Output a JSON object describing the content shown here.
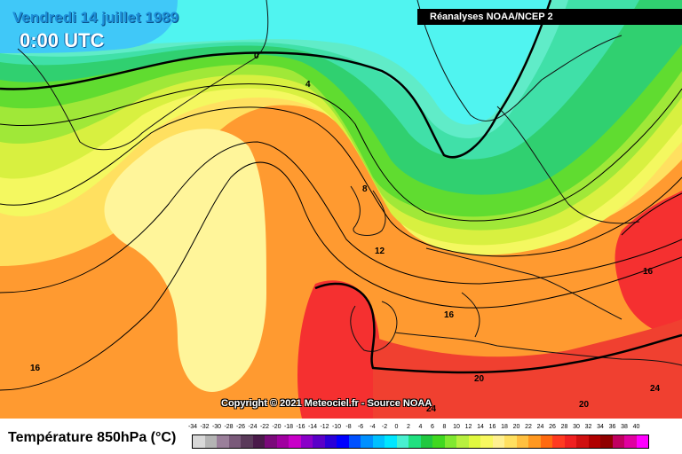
{
  "header": {
    "date": "Vendredi 14 juillet 1989",
    "time": "0:00 UTC",
    "source": "Réanalyses NOAA/NCEP 2"
  },
  "copyright": "Copyright © 2021 Meteociel.fr - Source NOAA",
  "legend": {
    "title": "Température 850hPa (°C)",
    "ticks": [
      "-34",
      "-32",
      "-30",
      "-28",
      "-26",
      "-24",
      "-22",
      "-20",
      "-18",
      "-16",
      "-14",
      "-12",
      "-10",
      "-8",
      "-6",
      "-4",
      "-2",
      "0",
      "2",
      "4",
      "6",
      "8",
      "10",
      "12",
      "14",
      "16",
      "18",
      "20",
      "22",
      "24",
      "26",
      "28",
      "30",
      "32",
      "34",
      "36",
      "38",
      "40"
    ],
    "colors": [
      "#d8d8d8",
      "#b4b4b4",
      "#9a7f9a",
      "#7a5a7a",
      "#5a3a5a",
      "#4a1a4a",
      "#7a0a7a",
      "#a000a0",
      "#c800c8",
      "#8a00c8",
      "#5a00c8",
      "#2a00d8",
      "#0000ff",
      "#0050ff",
      "#0090ff",
      "#00c0ff",
      "#00e6ff",
      "#48f0d0",
      "#20e080",
      "#20c840",
      "#40d820",
      "#80e830",
      "#b8f040",
      "#e0f840",
      "#f8f860",
      "#fff090",
      "#ffe060",
      "#ffc040",
      "#ff9820",
      "#ff6a10",
      "#ff3a20",
      "#f02020",
      "#d01010",
      "#b00000",
      "#900000",
      "#c00060",
      "#e000a0",
      "#ff00ff"
    ]
  },
  "contours": {
    "labels": [
      "0",
      "4",
      "8",
      "12",
      "16",
      "16",
      "16",
      "20",
      "20",
      "24",
      "24"
    ]
  }
}
